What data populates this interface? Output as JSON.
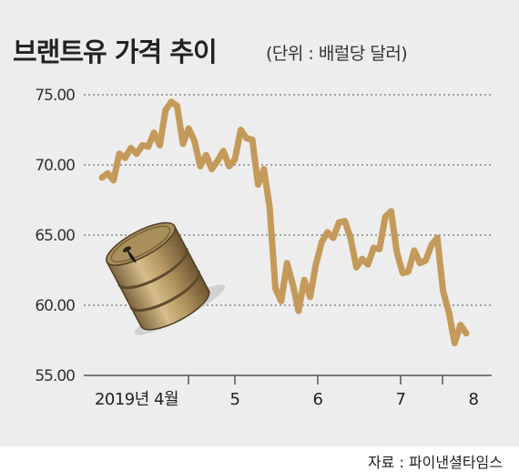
{
  "header": {
    "title": "브랜트유 가격 추이",
    "unit": "(단위 : 배럴당 달러)"
  },
  "footer": {
    "source": "자료 : 파이낸셜타임스"
  },
  "colors": {
    "line": "#c49a5a",
    "background": "#ededed",
    "grid": "#555555",
    "barrel": "#b09560"
  },
  "illustration": {
    "icon": "oil-barrel-icon"
  },
  "chart_data": {
    "type": "line",
    "title": "브랜트유 가격 추이",
    "xlabel": "",
    "ylabel": "",
    "ylim": [
      55,
      77
    ],
    "yticks": [
      "75.00",
      "70.00",
      "65.00",
      "60.00",
      "55.00"
    ],
    "ytick_values": [
      75,
      70,
      65,
      60,
      55
    ],
    "xticks": [
      "2019년 4월",
      "5",
      "6",
      "7",
      "8"
    ],
    "grid": true,
    "series": [
      {
        "values": [
          69.1,
          69.4,
          68.9,
          70.8,
          70.5,
          71.2,
          70.8,
          71.4,
          71.3,
          72.3,
          71.4,
          73.9,
          74.5,
          74.2,
          71.5,
          72.6,
          71.7,
          69.9,
          70.7,
          69.7,
          70.3,
          71.0,
          69.9,
          70.4,
          72.5,
          71.9,
          71.8,
          68.6,
          69.7,
          67.0,
          61.2,
          60.3,
          63.0,
          61.5,
          59.6,
          61.8,
          60.6,
          62.9,
          64.5,
          65.2,
          64.8,
          65.9,
          66.0,
          64.8,
          62.7,
          63.3,
          62.9,
          64.1,
          64.0,
          66.3,
          66.7,
          63.8,
          62.3,
          62.4,
          63.9,
          63.0,
          63.2,
          64.3,
          64.8,
          61.0,
          59.5,
          57.3,
          58.6,
          58.0
        ]
      }
    ]
  }
}
